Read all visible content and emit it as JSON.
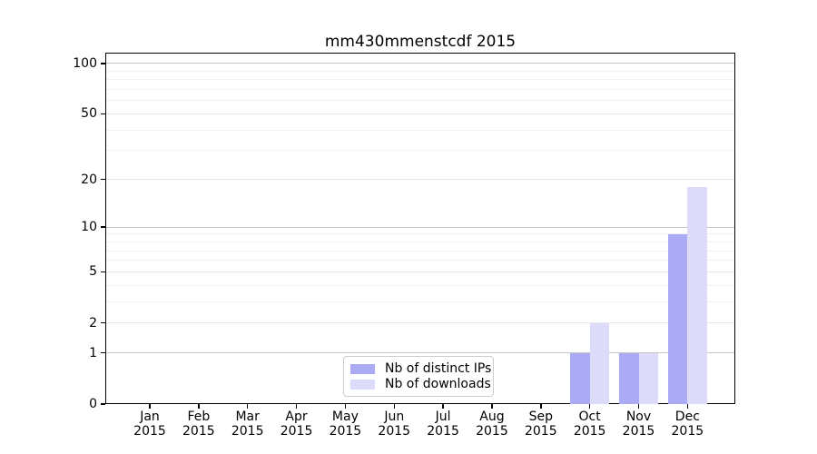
{
  "title": "mm430mmenstcdf 2015",
  "colors": {
    "background": "#ffffff",
    "spine": "#000000",
    "bar_ips": "#aaaaf5",
    "bar_downloads": "#dcdcfa",
    "grid_strong": "#c6c6c6",
    "grid_light": "#e7e7e7",
    "grid_minor": "#f1f1f1",
    "legend_border": "#cccccc",
    "text": "#000000"
  },
  "legend": {
    "items": [
      {
        "label": "Nb of distinct IPs",
        "color": "#aaaaf5"
      },
      {
        "label": "Nb of downloads",
        "color": "#dcdcfa"
      }
    ]
  },
  "chart_data": {
    "type": "bar",
    "title": "mm430mmenstcdf 2015",
    "categories": [
      "Jan 2015",
      "Feb 2015",
      "Mar 2015",
      "Apr 2015",
      "May 2015",
      "Jun 2015",
      "Jul 2015",
      "Aug 2015",
      "Sep 2015",
      "Oct 2015",
      "Nov 2015",
      "Dec 2015"
    ],
    "series": [
      {
        "name": "Nb of distinct IPs",
        "color": "#aaaaf5",
        "values": [
          0,
          0,
          0,
          0,
          0,
          0,
          0,
          0,
          0,
          1,
          1,
          9
        ]
      },
      {
        "name": "Nb of downloads",
        "color": "#dcdcfa",
        "values": [
          0,
          0,
          0,
          0,
          0,
          0,
          0,
          0,
          0,
          2,
          1,
          18
        ]
      }
    ],
    "yscale": "log1p",
    "ylim": [
      0,
      116
    ],
    "yticks": [
      0,
      1,
      2,
      5,
      10,
      20,
      50,
      100
    ],
    "minor_gridlines": [
      3,
      4,
      6,
      7,
      8,
      9,
      30,
      40,
      60,
      70,
      80,
      90
    ],
    "grid": true,
    "legend_position": "lower center",
    "xlabel": "",
    "ylabel": ""
  }
}
